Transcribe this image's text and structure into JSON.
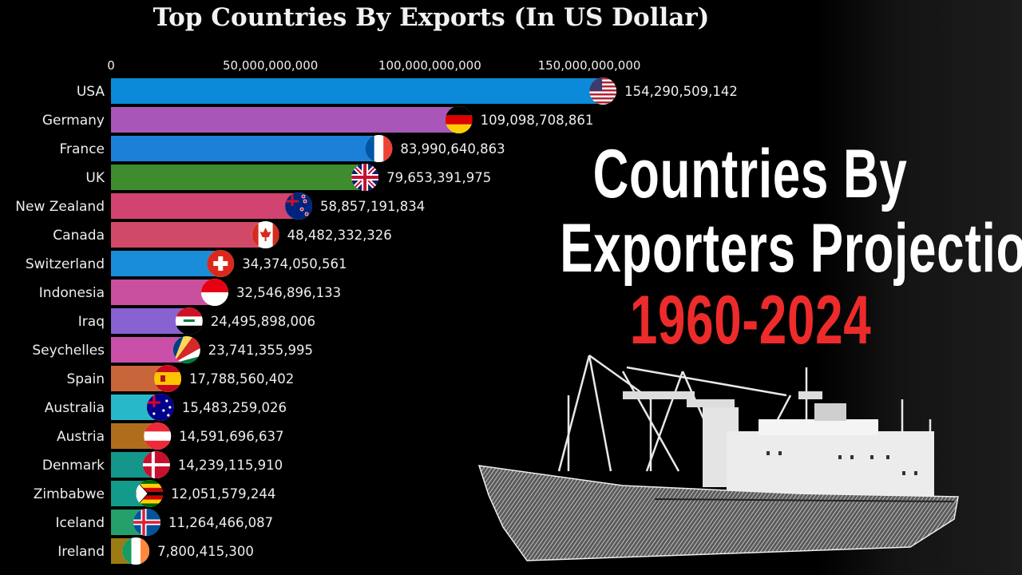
{
  "chart_data": {
    "type": "bar",
    "orientation": "horizontal",
    "title": "Top Countries By Exports (In US Dollar)",
    "xlim": [
      0,
      160000000000
    ],
    "xticks": [
      0,
      50000000000,
      100000000000,
      150000000000
    ],
    "xtick_labels": [
      "0",
      "50,000,000,000",
      "100,000,000,000",
      "150,000,000,000"
    ],
    "axis_position": "top",
    "grid": false,
    "categories": [
      "USA",
      "Germany",
      "France",
      "UK",
      "New Zealand",
      "Canada",
      "Switzerland",
      "Indonesia",
      "Iraq",
      "Seychelles",
      "Spain",
      "Australia",
      "Austria",
      "Denmark",
      "Zimbabwe",
      "Iceland",
      "Ireland"
    ],
    "values": [
      154290509142,
      109098708861,
      83990640863,
      79653391975,
      58857191834,
      48482332326,
      34374050561,
      32546896133,
      24495898006,
      23741355995,
      17788560402,
      15483259026,
      14591696637,
      14239115910,
      12051579244,
      11264466087,
      7800415300
    ],
    "value_labels": [
      "154,290,509,142",
      "109,098,708,861",
      "83,990,640,863",
      "79,653,391,975",
      "58,857,191,834",
      "48,482,332,326",
      "34,374,050,561",
      "32,546,896,133",
      "24,495,898,006",
      "23,741,355,995",
      "17,788,560,402",
      "15,483,259,026",
      "14,591,696,637",
      "14,239,115,910",
      "12,051,579,244",
      "11,264,466,087",
      "7,800,415,300"
    ],
    "colors": [
      "#0a8ad8",
      "#a956b9",
      "#1c80d8",
      "#3f8c2f",
      "#d0446f",
      "#d04a68",
      "#1a8dd8",
      "#c9509f",
      "#8862d0",
      "#c94fa8",
      "#c9653a",
      "#28b9c8",
      "#b06e1c",
      "#14968a",
      "#129a8a",
      "#24a06a",
      "#9c7b15"
    ],
    "flag_icons": [
      "usa-flag-icon",
      "germany-flag-icon",
      "france-flag-icon",
      "uk-flag-icon",
      "new-zealand-flag-icon",
      "canada-flag-icon",
      "switzerland-flag-icon",
      "indonesia-flag-icon",
      "iraq-flag-icon",
      "seychelles-flag-icon",
      "spain-flag-icon",
      "australia-flag-icon",
      "austria-flag-icon",
      "denmark-flag-icon",
      "zimbabwe-flag-icon",
      "iceland-flag-icon",
      "ireland-flag-icon"
    ]
  },
  "headline": {
    "line1": "Countries By",
    "line2": "Exporters Projection",
    "years": "1960-2024",
    "years_color": "#ee2b2b"
  }
}
